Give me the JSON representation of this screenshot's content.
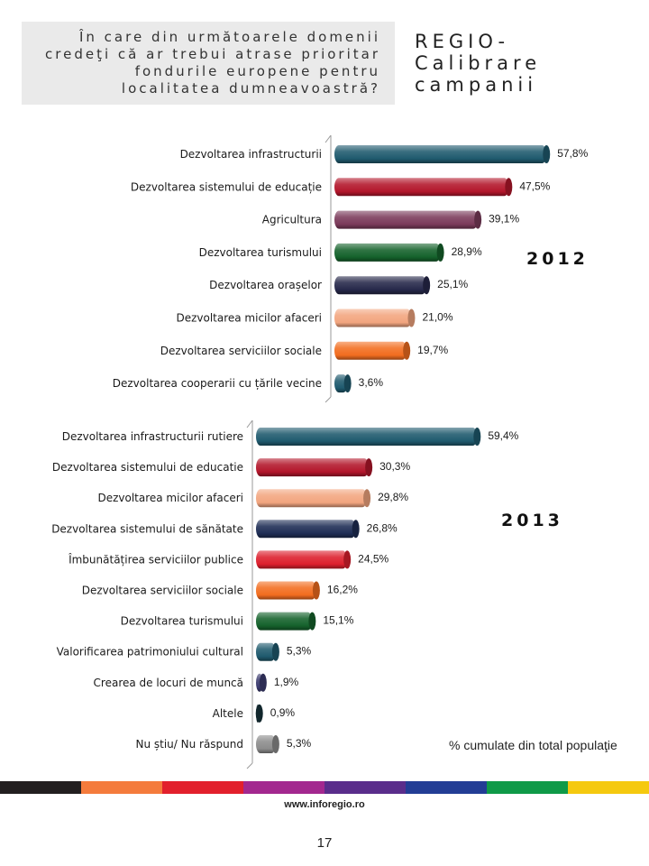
{
  "question": "În care din următoarele domenii credeţi că ar trebui atrase prioritar fondurile europene pentru localitatea dumneavoastră?",
  "regio_title": "REGIO- Calibrare campanii",
  "footnote": "% cumulate din total populaţie",
  "website": "www.inforegio.ro",
  "page_number": "17",
  "strip_colors": [
    "#231f20",
    "#f47b3c",
    "#e2202c",
    "#a3288f",
    "#5a2d8b",
    "#233d95",
    "#0f9a48",
    "#f5c90f"
  ],
  "chart_data": [
    {
      "type": "bar",
      "orientation": "horizontal",
      "year_label": "2012",
      "value_max": 60,
      "categories": [
        "Dezvoltarea infrastructurii",
        "Dezvoltarea sistemului de educație",
        "Agricultura",
        "Dezvoltarea turismului",
        "Dezvoltarea orașelor",
        "Dezvoltarea micilor afaceri",
        "Dezvoltarea serviciilor sociale",
        "Dezvoltarea cooperarii cu țările vecine"
      ],
      "values": [
        57.8,
        47.5,
        39.1,
        28.9,
        25.1,
        21.0,
        19.7,
        3.6
      ],
      "value_labels": [
        "57,8%",
        "47,5%",
        "39,1%",
        "28,9%",
        "25,1%",
        "21,0%",
        "19,7%",
        "3,6%"
      ],
      "colors": [
        "#1f5a6e",
        "#b3162b",
        "#7b3a5a",
        "#15622c",
        "#26284a",
        "#f2a57f",
        "#f26d1f",
        "#1f5a6e"
      ]
    },
    {
      "type": "bar",
      "orientation": "horizontal",
      "year_label": "2013",
      "value_max": 60,
      "categories": [
        "Dezvoltarea infrastructurii rutiere",
        "Dezvoltarea sistemului de educatie",
        "Dezvoltarea micilor afaceri",
        "Dezvoltarea sistemului de sănătate",
        "Îmbunătățirea serviciilor publice",
        "Dezvoltarea serviciilor sociale",
        "Dezvoltarea turismului",
        "Valorificarea patrimoniului cultural",
        "Crearea de locuri de muncă",
        "Altele",
        "Nu știu/ Nu răspund"
      ],
      "values": [
        59.4,
        30.3,
        29.8,
        26.8,
        24.5,
        16.2,
        15.1,
        5.3,
        1.9,
        0.9,
        5.3
      ],
      "value_labels": [
        "59,4%",
        "30,3%",
        "29,8%",
        "26,8%",
        "24,5%",
        "16,2%",
        "15,1%",
        "5,3%",
        "1,9%",
        "0,9%",
        "5,3%"
      ],
      "colors": [
        "#1f5a6e",
        "#b3162b",
        "#f2a57f",
        "#1e2d55",
        "#dd1f2d",
        "#f26d1f",
        "#15622c",
        "#1f5a6e",
        "#3a3a6e",
        "#17323a",
        "#8c8c8c"
      ]
    }
  ]
}
